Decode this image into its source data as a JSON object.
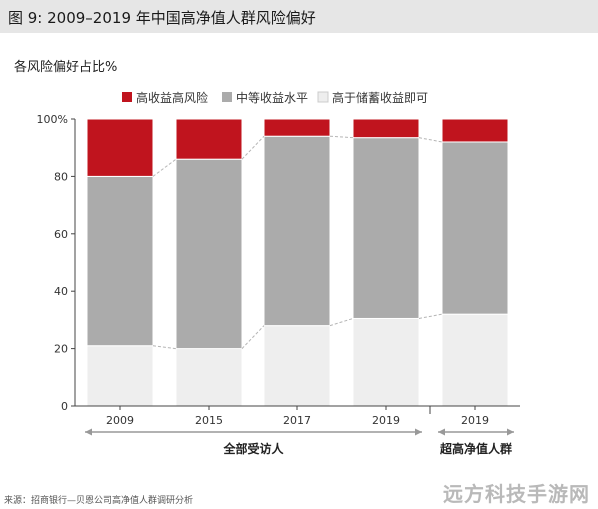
{
  "header": {
    "title": "图 9:  2009–2019 年中国高净值人群风险偏好"
  },
  "chart_data": {
    "type": "bar",
    "stacked": true,
    "categories": [
      "2009",
      "2015",
      "2017",
      "2019",
      "2019"
    ],
    "series": [
      {
        "name": "高于储蓄收益即可",
        "color": "#eeeeee",
        "values": [
          21,
          20,
          28,
          30.5,
          32
        ]
      },
      {
        "name": "中等收益水平",
        "color": "#ababab",
        "values": [
          59,
          66,
          66,
          63,
          60
        ]
      },
      {
        "name": "高收益高风险",
        "color": "#c0141e",
        "values": [
          20,
          14,
          6,
          6.5,
          8
        ]
      }
    ],
    "ylabel": "各风险偏好占比%",
    "ylim": [
      0,
      100
    ],
    "yticks": [
      "0",
      "20",
      "40",
      "60",
      "80",
      "100%"
    ],
    "legend_position": "top",
    "groups": [
      {
        "label": "全部受访人",
        "categories": [
          0,
          1,
          2,
          3
        ]
      },
      {
        "label": "超高净值人群",
        "categories": [
          4
        ]
      }
    ]
  },
  "source": "来源：招商银行—贝恩公司高净值人群调研分析",
  "watermark": "远方科技手游网"
}
